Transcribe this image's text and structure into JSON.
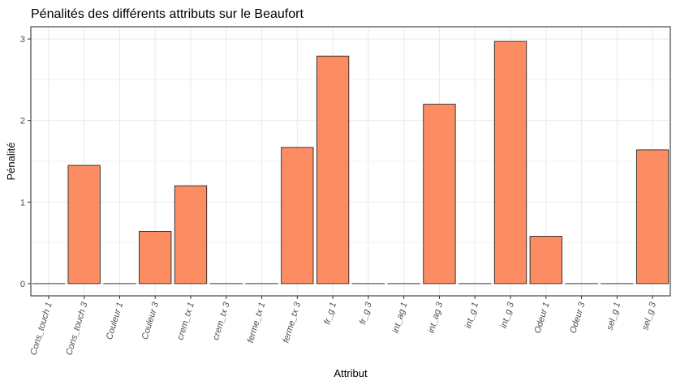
{
  "chart_data": {
    "type": "bar",
    "title": "Pénalités des différents attributs sur le Beaufort",
    "xlabel": "Attribut",
    "ylabel": "Pénalité",
    "categories": [
      "Cons_touch 1",
      "Cons_touch 3",
      "Couleur 1",
      "Couleur 3",
      "crem_tx 1",
      "crem_tx 3",
      "ferme_tx 1",
      "ferme_tx 3",
      "fr_g 1",
      "fr_g 3",
      "int_ag 1",
      "int_ag 3",
      "int_g 1",
      "int_g 3",
      "Odeur 1",
      "Odeur 3",
      "sel_g 1",
      "sel_g 3"
    ],
    "values": [
      0,
      1.45,
      0,
      0.64,
      1.2,
      0,
      0,
      1.67,
      2.79,
      0,
      0,
      2.2,
      0,
      2.97,
      0.58,
      0,
      0,
      1.64
    ],
    "yticks": [
      0,
      1,
      2,
      3
    ],
    "ylim": [
      -0.15,
      3.15
    ],
    "grid": true,
    "colors": {
      "bar_fill": "#FC8D62",
      "bar_stroke": "#262626",
      "grid": "#ebebeb",
      "panel_border": "#333333"
    }
  }
}
